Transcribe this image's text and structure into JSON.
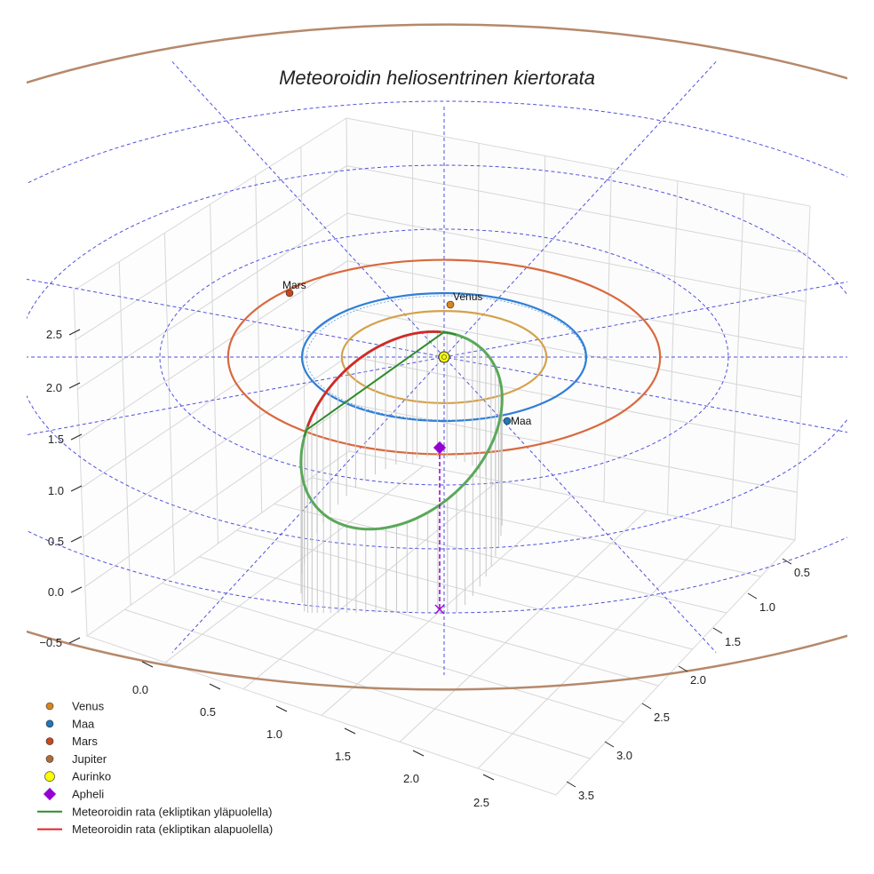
{
  "chart_data": {
    "type": "scatter",
    "projection": "3d",
    "title": "Meteoroidin heliosentrinen kiertorata",
    "x_ticks": [
      "0.0",
      "0.5",
      "1.0",
      "1.5",
      "2.0",
      "2.5"
    ],
    "y_ticks": [
      "0.5",
      "1.0",
      "1.5",
      "2.0",
      "2.5",
      "3.0",
      "3.5"
    ],
    "z_ticks": [
      "−0.5",
      "0.0",
      "0.5",
      "1.0",
      "1.5",
      "2.0",
      "2.5"
    ],
    "xlim": [
      -0.2,
      2.8
    ],
    "ylim": [
      0.2,
      3.8
    ],
    "zlim": [
      -0.6,
      2.8
    ],
    "sun": {
      "name": "Aurinko",
      "x": 0,
      "y": 0,
      "z": 0
    },
    "planet_orbits": [
      {
        "name": "Venus",
        "radius_au": 0.72,
        "color": "#d4a24c"
      },
      {
        "name": "Maa",
        "radius_au": 1.0,
        "color": "#2f7fd6"
      },
      {
        "name": "Mars",
        "radius_au": 1.52,
        "color": "#d9693e"
      },
      {
        "name": "Jupiter",
        "radius_au": 5.2,
        "color": "#b5896b"
      }
    ],
    "reference_circles_au": [
      2.0,
      3.0,
      4.0
    ],
    "planet_positions": [
      {
        "name": "Venus",
        "label": "Venus",
        "x": 0.0,
        "y": 0.72,
        "z": 0,
        "color": "#d7851f"
      },
      {
        "name": "Maa",
        "label": "Maa",
        "x": 0.83,
        "y": -0.55,
        "z": 0,
        "color": "#1f77b4"
      },
      {
        "name": "Mars",
        "label": "Mars",
        "x": -1.3,
        "y": 0.8,
        "z": 0,
        "color": "#c8481c"
      }
    ],
    "meteoroid_orbit": {
      "semi_major_axis_au": 1.0,
      "eccentricity": 0.78,
      "inclination_deg": 24,
      "above_color": "#2e8b2e",
      "below_color": "#e0212b",
      "above_label": "Meteoroidin rata (ekliptikan yläpuolella)",
      "below_label": "Meteoroidin rata (ekliptikan alapuolella)"
    },
    "aphelion": {
      "label": "Apheli",
      "x": 0.2,
      "y": -1.6,
      "z": 0.7,
      "color": "#9400d3"
    },
    "legend": [
      {
        "label": "Venus",
        "marker": "circle",
        "color": "#d7851f"
      },
      {
        "label": "Maa",
        "marker": "circle",
        "color": "#1f77b4"
      },
      {
        "label": "Mars",
        "marker": "circle",
        "color": "#c8481c"
      },
      {
        "label": "Jupiter",
        "marker": "circle",
        "color": "#b06a3a"
      },
      {
        "label": "Aurinko",
        "marker": "circle",
        "color": "#ffff00"
      },
      {
        "label": "Apheli",
        "marker": "diamond",
        "color": "#9400d3"
      },
      {
        "label": "Meteoroidin rata (ekliptikan yläpuolella)",
        "marker": "line",
        "color": "#2e8b2e"
      },
      {
        "label": "Meteoroidin rata (ekliptikan alapuolella)",
        "marker": "line",
        "color": "#e0212b"
      }
    ],
    "legend_position": "lower-left"
  }
}
